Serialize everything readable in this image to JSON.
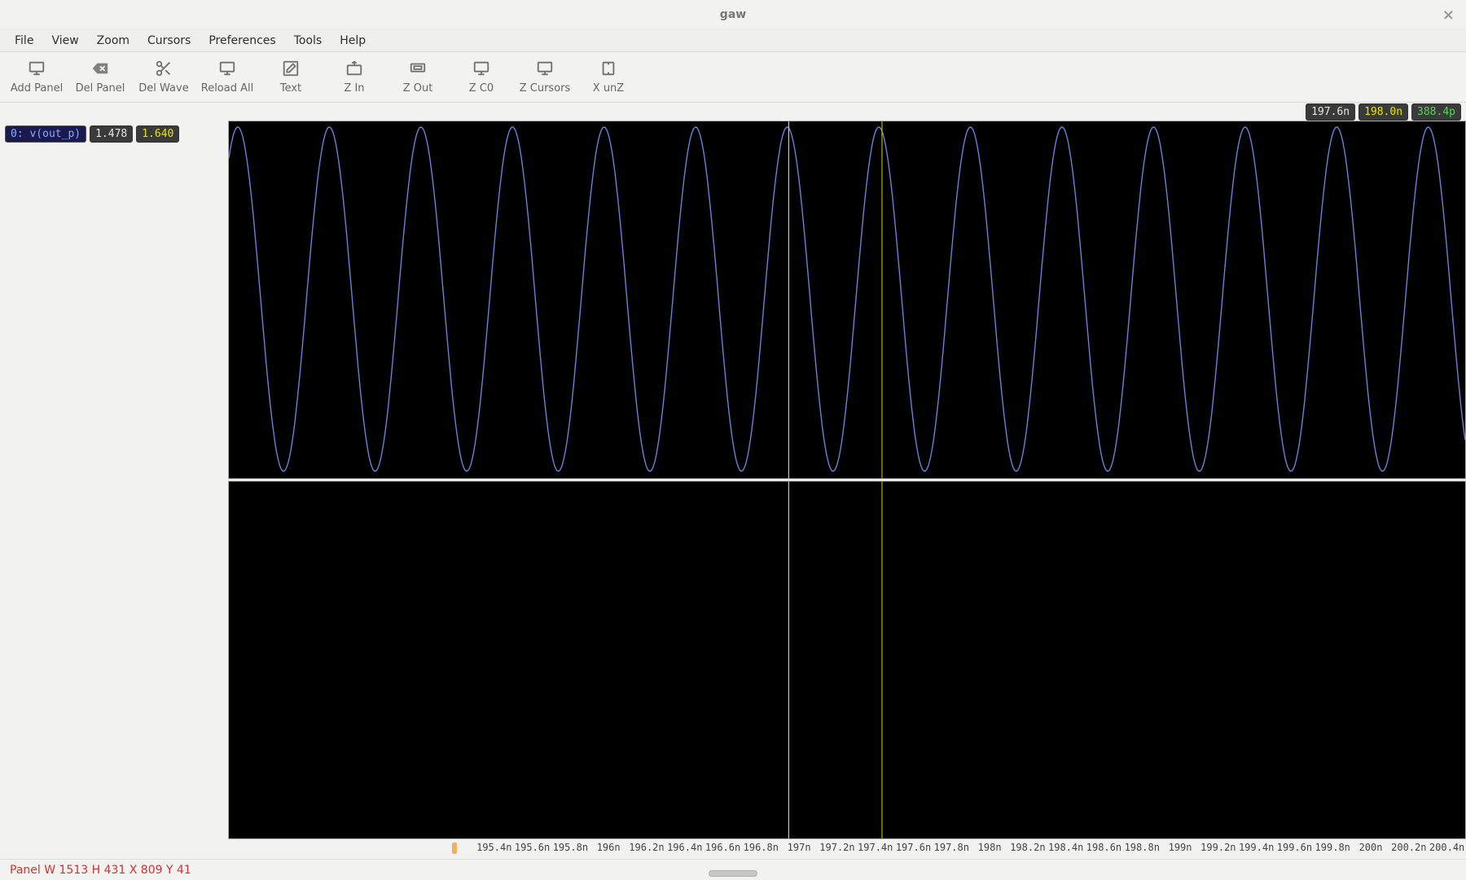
{
  "window": {
    "title": "gaw"
  },
  "menu": [
    "File",
    "View",
    "Zoom",
    "Cursors",
    "Preferences",
    "Tools",
    "Help"
  ],
  "toolbar": [
    {
      "name": "add-panel",
      "label": "Add Panel",
      "icon": "monitor"
    },
    {
      "name": "del-panel",
      "label": "Del Panel",
      "icon": "backspace"
    },
    {
      "name": "del-wave",
      "label": "Del Wave",
      "icon": "scissors"
    },
    {
      "name": "reload-all",
      "label": "Reload All",
      "icon": "monitor"
    },
    {
      "name": "text",
      "label": "Text",
      "icon": "edit"
    },
    {
      "name": "zoom-in",
      "label": "Z In",
      "icon": "zin"
    },
    {
      "name": "zoom-out",
      "label": "Z Out",
      "icon": "zout"
    },
    {
      "name": "zoom-c0",
      "label": "Z C0",
      "icon": "monitor"
    },
    {
      "name": "zoom-cursors",
      "label": "Z Cursors",
      "icon": "monitor"
    },
    {
      "name": "x-unzoom",
      "label": "X unZ",
      "icon": "xunz"
    }
  ],
  "readout": {
    "cursor0_x": "197.6n",
    "cursor1_x": "198.0n",
    "delta_x": "388.4p"
  },
  "trace": {
    "name": "0: v(out_p)",
    "val_at_c0": "1.478",
    "val_at_c1": "1.640"
  },
  "panels": [
    {
      "id": "panel-0",
      "ylim_top": "5.468",
      "ylim_bot": "1.165",
      "ymin": 1.165,
      "ymax": 5.468,
      "background": "#000000",
      "wave": {
        "color": "#6d7fd8",
        "stroke_width": 1.4,
        "cycles": 13.5,
        "phase_deg": 55,
        "amp_min": 1.25,
        "amp_max": 5.4
      }
    },
    {
      "id": "panel-1",
      "ylim_top": "1.000",
      "ylim_bot": "0.0",
      "ymin": 0.0,
      "ymax": 1.0,
      "background": "#000000",
      "wave": null
    }
  ],
  "xaxis": {
    "min": 195.2,
    "max": 200.5,
    "ticks": [
      {
        "v": 195.4,
        "label": "195.4n"
      },
      {
        "v": 195.6,
        "label": "195.6n"
      },
      {
        "v": 195.8,
        "label": "195.8n"
      },
      {
        "v": 196.0,
        "label": "196n"
      },
      {
        "v": 196.2,
        "label": "196.2n"
      },
      {
        "v": 196.4,
        "label": "196.4n"
      },
      {
        "v": 196.6,
        "label": "196.6n"
      },
      {
        "v": 196.8,
        "label": "196.8n"
      },
      {
        "v": 197.0,
        "label": "197n"
      },
      {
        "v": 197.2,
        "label": "197.2n"
      },
      {
        "v": 197.4,
        "label": "197.4n"
      },
      {
        "v": 197.6,
        "label": "197.6n"
      },
      {
        "v": 197.8,
        "label": "197.8n"
      },
      {
        "v": 198.0,
        "label": "198n"
      },
      {
        "v": 198.2,
        "label": "198.2n"
      },
      {
        "v": 198.4,
        "label": "198.4n"
      },
      {
        "v": 198.6,
        "label": "198.6n"
      },
      {
        "v": 198.8,
        "label": "198.8n"
      },
      {
        "v": 199.0,
        "label": "199n"
      },
      {
        "v": 199.2,
        "label": "199.2n"
      },
      {
        "v": 199.4,
        "label": "199.4n"
      },
      {
        "v": 199.6,
        "label": "199.6n"
      },
      {
        "v": 199.8,
        "label": "199.8n"
      },
      {
        "v": 200.0,
        "label": "200n"
      },
      {
        "v": 200.2,
        "label": "200.2n"
      },
      {
        "v": 200.4,
        "label": "200.4n"
      }
    ]
  },
  "cursors": [
    {
      "id": "c0",
      "x": 197.6,
      "color": "#e6e6e6",
      "width": 1
    },
    {
      "id": "c1",
      "x": 198.0,
      "color": "#d8d800",
      "width": 1
    }
  ],
  "status": "Panel W 1513 H 431 X 809 Y 41"
}
